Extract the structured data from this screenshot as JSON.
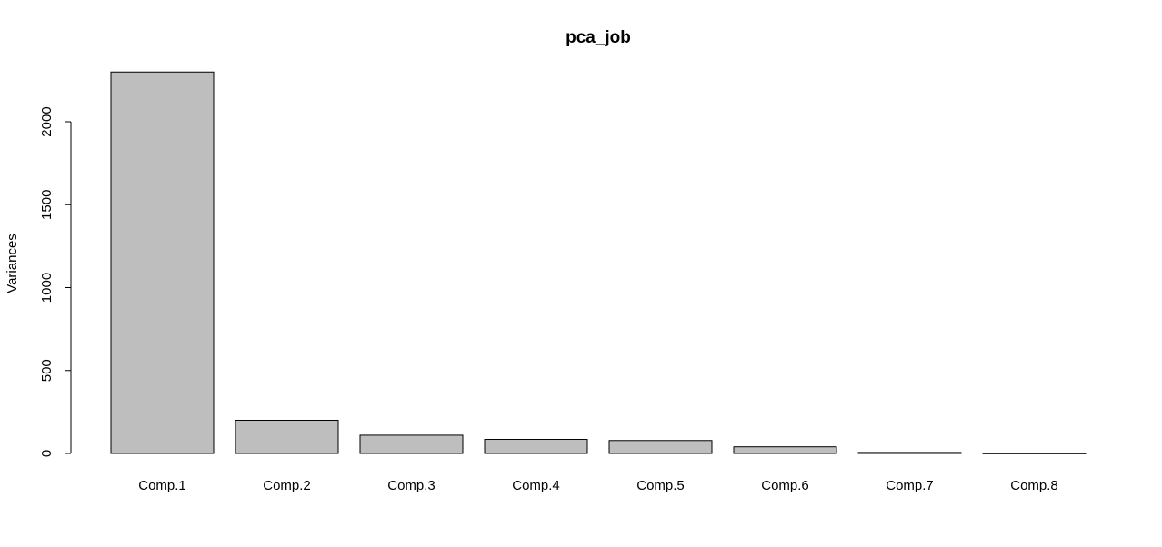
{
  "chart_data": {
    "type": "bar",
    "title": "pca_job",
    "xlabel": "",
    "ylabel": "Variances",
    "categories": [
      "Comp.1",
      "Comp.2",
      "Comp.3",
      "Comp.4",
      "Comp.5",
      "Comp.6",
      "Comp.7",
      "Comp.8"
    ],
    "values": [
      2300,
      200,
      110,
      85,
      78,
      40,
      6,
      1
    ],
    "yticks": [
      0,
      500,
      1000,
      1500,
      2000
    ],
    "ylim": [
      0,
      2300
    ],
    "grid": false,
    "legend": "none",
    "colors": {
      "bar_fill": "#bebebe",
      "bar_stroke": "#000000"
    }
  }
}
